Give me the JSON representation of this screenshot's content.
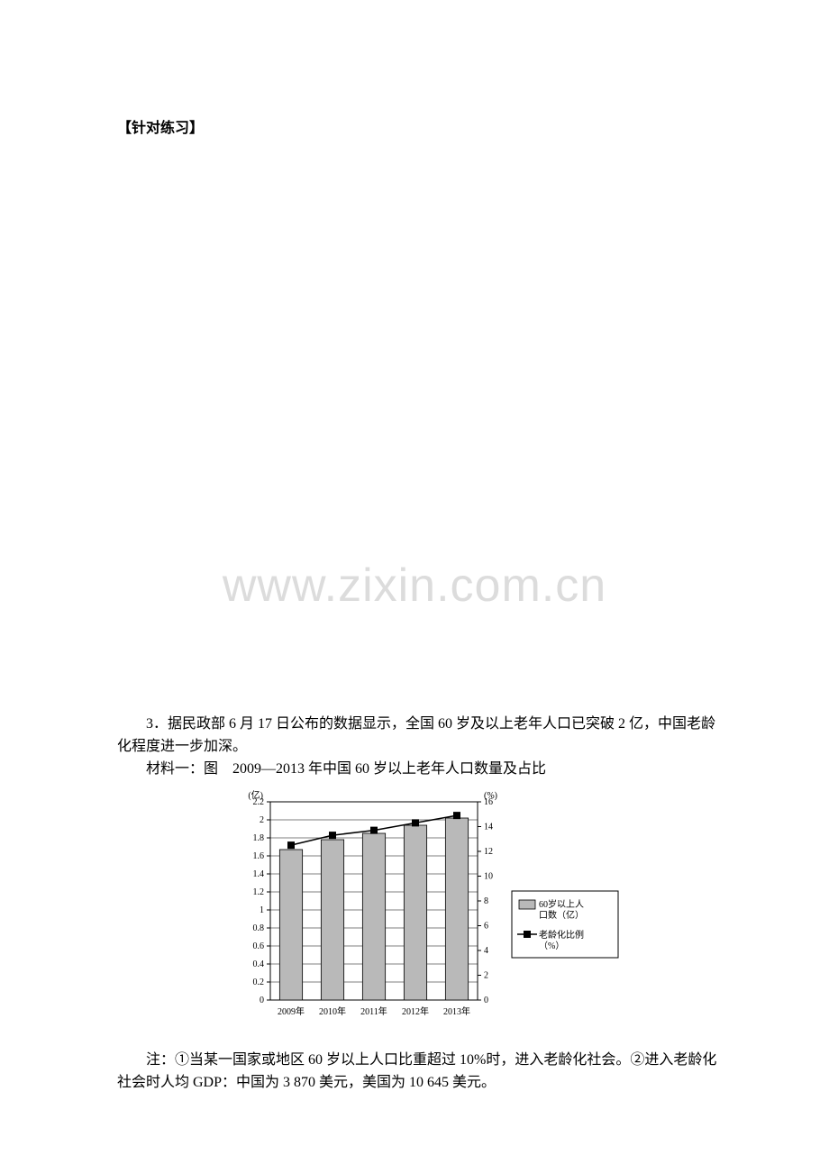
{
  "section_title": "【针对练习】",
  "watermark": "www.zixin.com.cn",
  "question": {
    "number_text": "3．",
    "para1": "据民政部 6 月 17 日公布的数据显示，全国 60 岁及以上老年人口已突破 2 亿，中国老龄化程度进一步加深。",
    "material_label": "材料一：图　2009—2013 年中国 60 岁以上老年人口数量及占比"
  },
  "chart": {
    "type": "bar_line_dual_axis",
    "categories": [
      "2009年",
      "2010年",
      "2011年",
      "2012年",
      "2013年"
    ],
    "bar_values": [
      1.67,
      1.78,
      1.85,
      1.94,
      2.02
    ],
    "line_values": [
      12.5,
      13.3,
      13.7,
      14.3,
      14.9
    ],
    "left_axis": {
      "label": "(亿)",
      "min": 0,
      "max": 2.2,
      "ticks": [
        0,
        0.2,
        0.4,
        0.6,
        0.8,
        1,
        1.2,
        1.4,
        1.6,
        1.8,
        2,
        2.2
      ]
    },
    "right_axis": {
      "label": "(%)",
      "min": 0,
      "max": 16,
      "ticks": [
        0,
        2,
        4,
        6,
        8,
        10,
        12,
        14,
        16
      ]
    },
    "legend": {
      "bar": "60岁以上人口数（亿）",
      "line": "老龄化比例（%）"
    },
    "colors": {
      "bar_fill": "#b9b9b9",
      "bar_stroke": "#000000",
      "line_stroke": "#000000",
      "marker_fill": "#000000",
      "grid": "#000000",
      "plot_bg": "#ffffff",
      "text": "#000000"
    },
    "font_size_axis": 10,
    "font_size_legend": 10,
    "bar_width_ratio": 0.55
  },
  "note_text": "注：①当某一国家或地区 60 岁以上人口比重超过 10%时，进入老龄化社会。②进入老龄化社会时人均 GDP：中国为 3 870 美元，美国为 10 645 美元。"
}
